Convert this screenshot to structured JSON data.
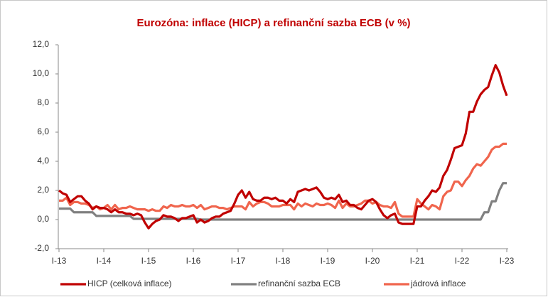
{
  "chart_data": {
    "type": "line",
    "title": "Eurozóna: inflace (HICP) a refinanční sazba ECB (v %)",
    "categories": [
      "I-13",
      null,
      null,
      null,
      null,
      null,
      null,
      null,
      null,
      null,
      null,
      null,
      "I-14",
      null,
      null,
      null,
      null,
      null,
      null,
      null,
      null,
      null,
      null,
      null,
      "I-15",
      null,
      null,
      null,
      null,
      null,
      null,
      null,
      null,
      null,
      null,
      null,
      "I-16",
      null,
      null,
      null,
      null,
      null,
      null,
      null,
      null,
      null,
      null,
      null,
      "I-17",
      null,
      null,
      null,
      null,
      null,
      null,
      null,
      null,
      null,
      null,
      null,
      "I-18",
      null,
      null,
      null,
      null,
      null,
      null,
      null,
      null,
      null,
      null,
      null,
      "I-19",
      null,
      null,
      null,
      null,
      null,
      null,
      null,
      null,
      null,
      null,
      null,
      "I-20",
      null,
      null,
      null,
      null,
      null,
      null,
      null,
      null,
      null,
      null,
      null,
      "I-21",
      null,
      null,
      null,
      null,
      null,
      null,
      null,
      null,
      null,
      null,
      null,
      "I-22",
      null,
      null,
      null,
      null,
      null,
      null,
      null,
      null,
      null,
      null,
      null,
      "I-23"
    ],
    "series": [
      {
        "name": "HICP (celková inflace)",
        "color": "#c00000",
        "values": [
          2.0,
          1.8,
          1.7,
          1.2,
          1.4,
          1.6,
          1.6,
          1.3,
          1.1,
          0.7,
          0.9,
          0.8,
          0.8,
          0.7,
          0.5,
          0.7,
          0.5,
          0.5,
          0.4,
          0.4,
          0.3,
          0.4,
          0.3,
          -0.2,
          -0.6,
          -0.3,
          -0.1,
          0.0,
          0.3,
          0.2,
          0.2,
          0.1,
          -0.1,
          0.1,
          0.1,
          0.2,
          0.3,
          -0.2,
          0.0,
          -0.2,
          -0.1,
          0.1,
          0.2,
          0.2,
          0.4,
          0.5,
          0.6,
          1.1,
          1.7,
          2.0,
          1.5,
          1.9,
          1.4,
          1.3,
          1.3,
          1.5,
          1.5,
          1.4,
          1.5,
          1.3,
          1.3,
          1.1,
          1.4,
          1.2,
          1.9,
          2.0,
          2.1,
          2.0,
          2.1,
          2.2,
          1.9,
          1.5,
          1.4,
          1.5,
          1.4,
          1.7,
          1.2,
          1.3,
          1.0,
          1.0,
          0.8,
          0.7,
          1.0,
          1.3,
          1.4,
          1.2,
          0.7,
          0.3,
          0.1,
          0.3,
          0.4,
          -0.2,
          -0.3,
          -0.3,
          -0.3,
          -0.3,
          0.9,
          0.9,
          1.3,
          1.6,
          2.0,
          1.9,
          2.2,
          3.0,
          3.4,
          4.1,
          4.9,
          5.0,
          5.1,
          5.9,
          7.4,
          7.4,
          8.1,
          8.6,
          8.9,
          9.1,
          9.9,
          10.6,
          10.1,
          9.2,
          8.5
        ]
      },
      {
        "name": "refinanční sazba ECB",
        "color": "#808080",
        "values": [
          0.75,
          0.75,
          0.75,
          0.75,
          0.5,
          0.5,
          0.5,
          0.5,
          0.5,
          0.5,
          0.25,
          0.25,
          0.25,
          0.25,
          0.25,
          0.25,
          0.25,
          0.25,
          0.25,
          0.25,
          0.05,
          0.05,
          0.05,
          0.05,
          0.05,
          0.05,
          0.05,
          0.05,
          0.05,
          0.05,
          0.05,
          0.05,
          0.05,
          0.05,
          0.05,
          0.05,
          0.05,
          0.05,
          0,
          0,
          0,
          0,
          0,
          0,
          0,
          0,
          0,
          0,
          0,
          0,
          0,
          0,
          0,
          0,
          0,
          0,
          0,
          0,
          0,
          0,
          0,
          0,
          0,
          0,
          0,
          0,
          0,
          0,
          0,
          0,
          0,
          0,
          0,
          0,
          0,
          0,
          0,
          0,
          0,
          0,
          0,
          0,
          0,
          0,
          0,
          0,
          0,
          0,
          0,
          0,
          0,
          0,
          0,
          0,
          0,
          0,
          0,
          0,
          0,
          0,
          0,
          0,
          0,
          0,
          0,
          0,
          0,
          0,
          0,
          0,
          0,
          0,
          0,
          0,
          0.5,
          0.5,
          1.25,
          1.25,
          2.0,
          2.5,
          2.5
        ]
      },
      {
        "name": "jádrová inflace",
        "color": "#f0654d",
        "values": [
          1.3,
          1.3,
          1.5,
          1.0,
          1.2,
          1.2,
          1.1,
          1.1,
          1.0,
          0.8,
          0.9,
          0.7,
          0.8,
          1.0,
          0.7,
          1.0,
          0.7,
          0.8,
          0.8,
          0.9,
          0.8,
          0.7,
          0.7,
          0.7,
          0.6,
          0.7,
          0.6,
          0.6,
          0.9,
          0.8,
          1.0,
          0.9,
          0.9,
          1.0,
          0.9,
          0.9,
          1.0,
          0.8,
          1.0,
          0.7,
          0.8,
          0.9,
          0.9,
          0.8,
          0.8,
          0.7,
          0.8,
          0.9,
          0.9,
          0.9,
          0.7,
          1.2,
          0.9,
          1.1,
          1.2,
          1.2,
          1.1,
          0.9,
          0.9,
          0.9,
          1.0,
          1.0,
          1.0,
          0.7,
          1.1,
          0.9,
          1.1,
          1.0,
          0.9,
          1.1,
          1.0,
          1.0,
          1.1,
          1.0,
          0.8,
          1.3,
          0.8,
          1.1,
          0.9,
          0.9,
          1.0,
          1.1,
          1.3,
          1.3,
          1.1,
          1.2,
          1.0,
          0.9,
          0.9,
          0.8,
          1.2,
          0.4,
          0.2,
          0.2,
          0.2,
          0.2,
          1.4,
          1.1,
          0.9,
          0.7,
          1.0,
          0.9,
          0.7,
          1.6,
          1.9,
          2.0,
          2.6,
          2.6,
          2.3,
          2.7,
          3.0,
          3.5,
          3.8,
          3.7,
          4.0,
          4.3,
          4.8,
          5.0,
          5.0,
          5.2,
          5.2
        ]
      }
    ],
    "ylim": [
      -2,
      12
    ],
    "yticks": [
      {
        "value": -2,
        "label": "-2,0"
      },
      {
        "value": 0,
        "label": "0,0"
      },
      {
        "value": 2,
        "label": "2,0"
      },
      {
        "value": 4,
        "label": "4,0"
      },
      {
        "value": 6,
        "label": "6,0"
      },
      {
        "value": 8,
        "label": "8,0"
      },
      {
        "value": 10,
        "label": "10,0"
      },
      {
        "value": 12,
        "label": "12,0"
      }
    ],
    "grid": false,
    "legend": "bottom"
  }
}
